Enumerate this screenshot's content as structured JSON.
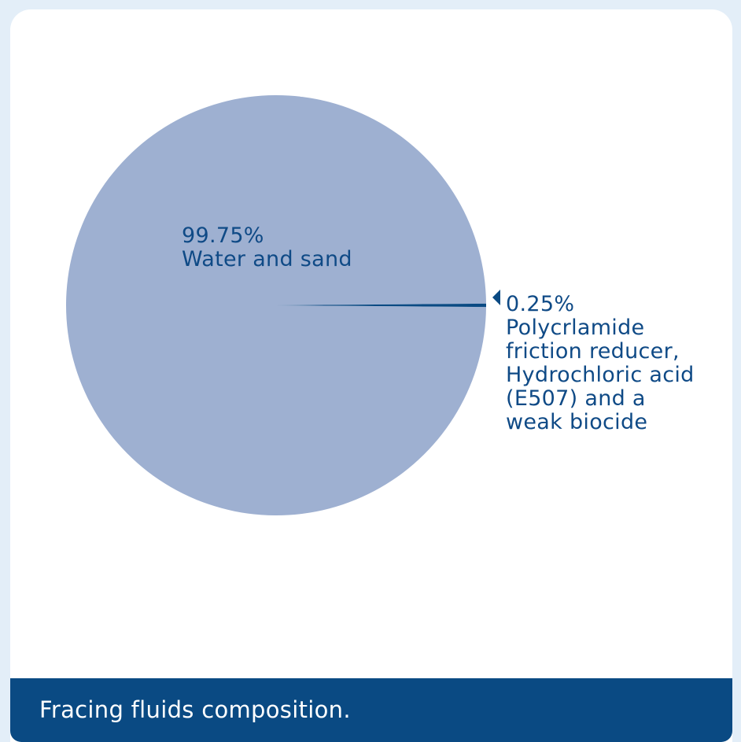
{
  "colors": {
    "background": "#e3eef8",
    "card": "#ffffff",
    "major_slice": "#9eb0d1",
    "minor_slice": "#0a4a83",
    "text": "#0f4a86",
    "caption_bar": "#0a4a83"
  },
  "caption": "Fracing fluids composition.",
  "chart_data": {
    "type": "pie",
    "slices": [
      {
        "value": 99.75,
        "value_label": "99.75%",
        "label_lines": [
          "Water and sand"
        ],
        "color": "#9eb0d1"
      },
      {
        "value": 0.25,
        "value_label": "0.25%",
        "label_lines": [
          "Polycrlamide",
          "friction reducer,",
          "Hydrochloric acid",
          "(E507) and a",
          "weak biocide"
        ],
        "color": "#0a4a83"
      }
    ]
  }
}
